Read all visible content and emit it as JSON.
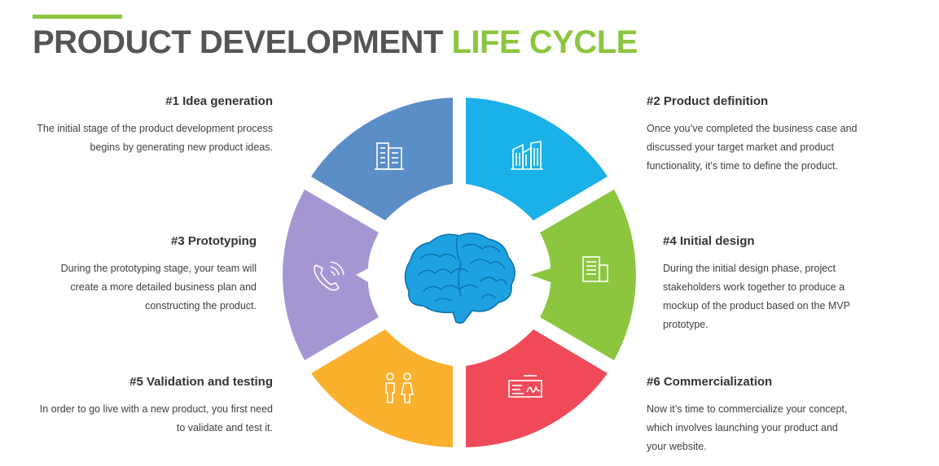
{
  "title": {
    "main": "PRODUCT DEVELOPMENT ",
    "highlight": "LIFE CYCLE"
  },
  "colors": {
    "title": "#555555",
    "accent": "#8cc63f",
    "idea": "#5b8ec7",
    "definition": "#1ab0e8",
    "prototyping": "#a596d3",
    "design": "#8cc63f",
    "validation": "#fbb02e",
    "commercialization": "#f04a59",
    "brain": "#1da1e0"
  },
  "steps": [
    {
      "id": "s1",
      "heading": "#1 Idea generation",
      "body": "The initial stage of the product development process begins by generating new product ideas.",
      "icon": "office-building-icon"
    },
    {
      "id": "s2",
      "heading": "#2 Product definition",
      "body": "Once you’ve completed the business case and discussed your target market and product functionality, it’s time to define the product.",
      "icon": "city-buildings-icon"
    },
    {
      "id": "s3",
      "heading": "#3 Prototyping",
      "body": "During the prototyping stage, your team will create a more detailed business plan and constructing the product.",
      "icon": "phone-icon"
    },
    {
      "id": "s4",
      "heading": "#4 Initial design",
      "body": "During the initial design phase, project stakeholders work together to produce a mockup of the product based on the MVP prototype.",
      "icon": "document-icon"
    },
    {
      "id": "s5",
      "heading": "#5 Validation and testing",
      "body": "In order to go live with a new product, you first need to validate and test it.",
      "icon": "people-icon"
    },
    {
      "id": "s6",
      "heading": "#6 Commercialization",
      "body": "Now it’s time to commercialize your concept, which involves launching your product and your website.",
      "icon": "check-signature-icon"
    }
  ]
}
